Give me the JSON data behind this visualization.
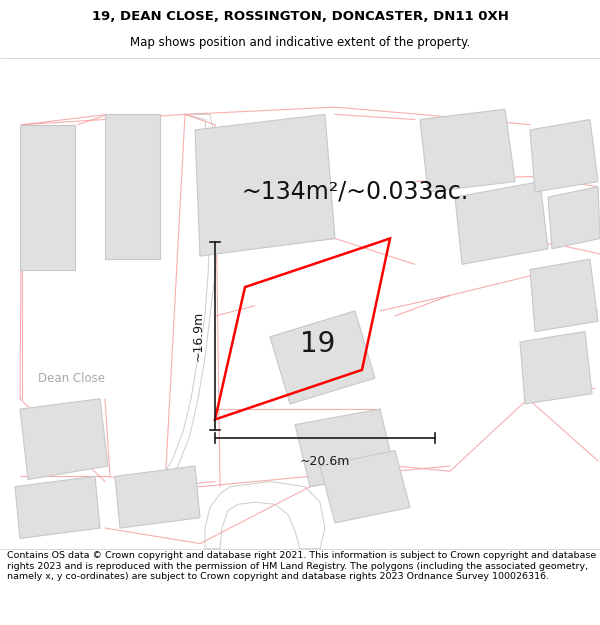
{
  "title_line1": "19, DEAN CLOSE, ROSSINGTON, DONCASTER, DN11 0XH",
  "title_line2": "Map shows position and indicative extent of the property.",
  "area_text": "~134m²/~0.033ac.",
  "number_label": "19",
  "dim_height": "~16.9m",
  "dim_width": "~20.6m",
  "street_label": "Dean Close",
  "footer_text": "Contains OS data © Crown copyright and database right 2021. This information is subject to Crown copyright and database rights 2023 and is reproduced with the permission of HM Land Registry. The polygons (including the associated geometry, namely x, y co-ordinates) are subject to Crown copyright and database rights 2023 Ordnance Survey 100026316.",
  "bg_color": "#ffffff",
  "map_bg_color": "#f2f2f2",
  "building_fill": "#e0e0e0",
  "building_edge": "#c8c8c8",
  "plot_color": "#ff0000",
  "plot_lw": 1.8,
  "dim_line_color": "#1a1a1a",
  "title_fontsize": 9.5,
  "subtitle_fontsize": 8.5,
  "area_fontsize": 17,
  "number_fontsize": 20,
  "street_fontsize": 8.5,
  "footer_fontsize": 6.8,
  "red_line_color": "#f5a0a0",
  "red_line_lw": 0.8,
  "road_color": "#ffffff",
  "road_edge_color": "#cccccc"
}
